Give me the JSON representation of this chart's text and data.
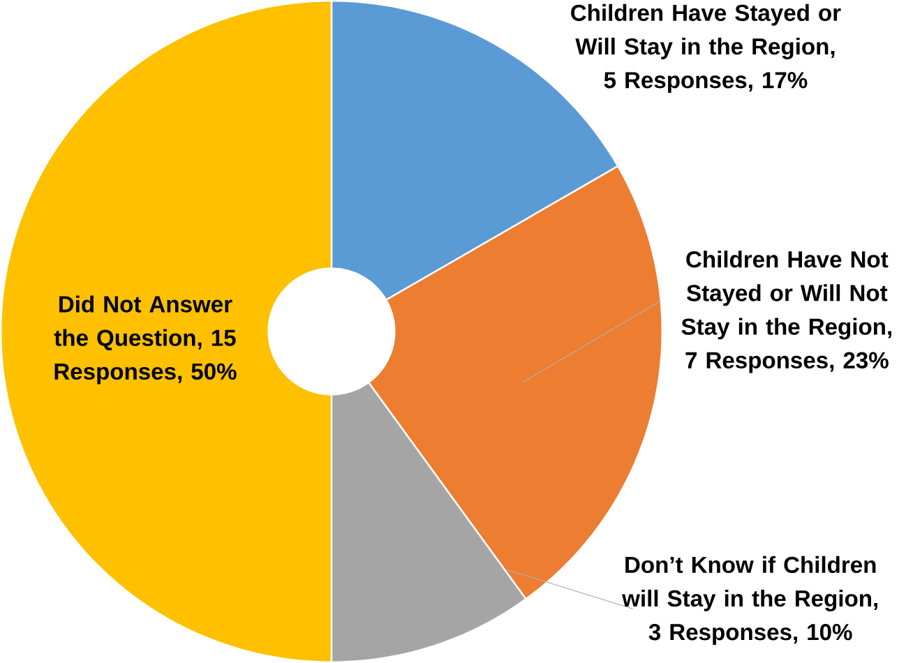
{
  "chart_data": {
    "type": "donut",
    "categories": [
      "Children Have Stayed or Will Stay in the Region, 5 Responses, 17%",
      "Children Have Not Stayed or Will Not Stay in the Region, 7 Responses, 23%",
      "Don’t Know if Children will Stay in the Region, 3 Responses, 10%",
      "Did Not Answer the Question, 15 Responses, 50%"
    ],
    "values": [
      5,
      7,
      3,
      15
    ],
    "colors": [
      "#5b9bd5",
      "#ed7d31",
      "#a5a5a5",
      "#ffc000"
    ]
  }
}
